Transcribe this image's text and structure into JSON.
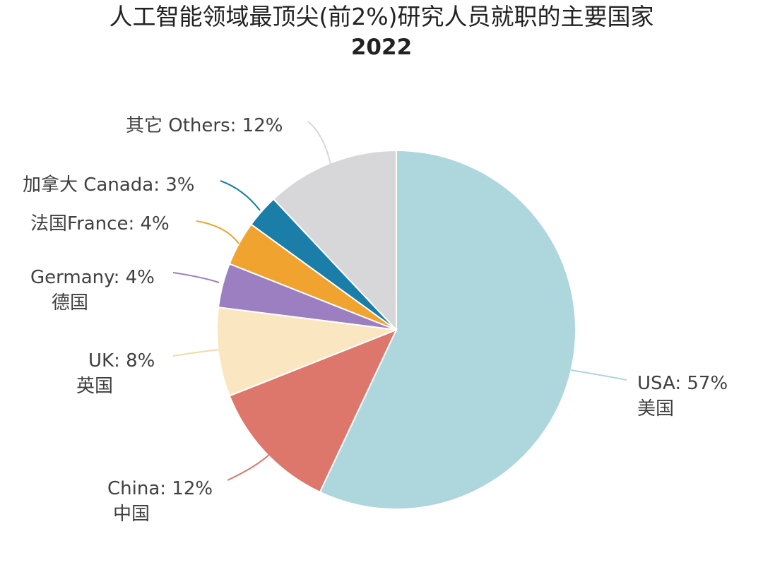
{
  "chart_data": {
    "type": "pie",
    "title": "人工智能领域最顶尖(前2%)研究人员就职的主要国家",
    "subtitle": "2022",
    "start_angle_deg": 0,
    "direction": "clockwise",
    "slices": [
      {
        "label_en": "USA: 57%",
        "label_cn": "美国",
        "value": 57,
        "color": "#aed6dd"
      },
      {
        "label_en": "China: 12%",
        "label_cn": "中国",
        "value": 12,
        "color": "#dd776b"
      },
      {
        "label_en": "UK: 8%",
        "label_cn": "英国",
        "value": 8,
        "color": "#fbe6c2"
      },
      {
        "label_en": "Germany: 4%",
        "label_cn": "德国",
        "value": 4,
        "color": "#9b7fc0"
      },
      {
        "label_en": "法国France: 4%",
        "label_cn": "",
        "value": 4,
        "color": "#f0a32e"
      },
      {
        "label_en": "加拿大 Canada: 3%",
        "label_cn": "",
        "value": 3,
        "color": "#1a7ea8"
      },
      {
        "label_en": "其它 Others: 12%",
        "label_cn": "",
        "value": 12,
        "color": "#d7d6d8"
      }
    ]
  }
}
